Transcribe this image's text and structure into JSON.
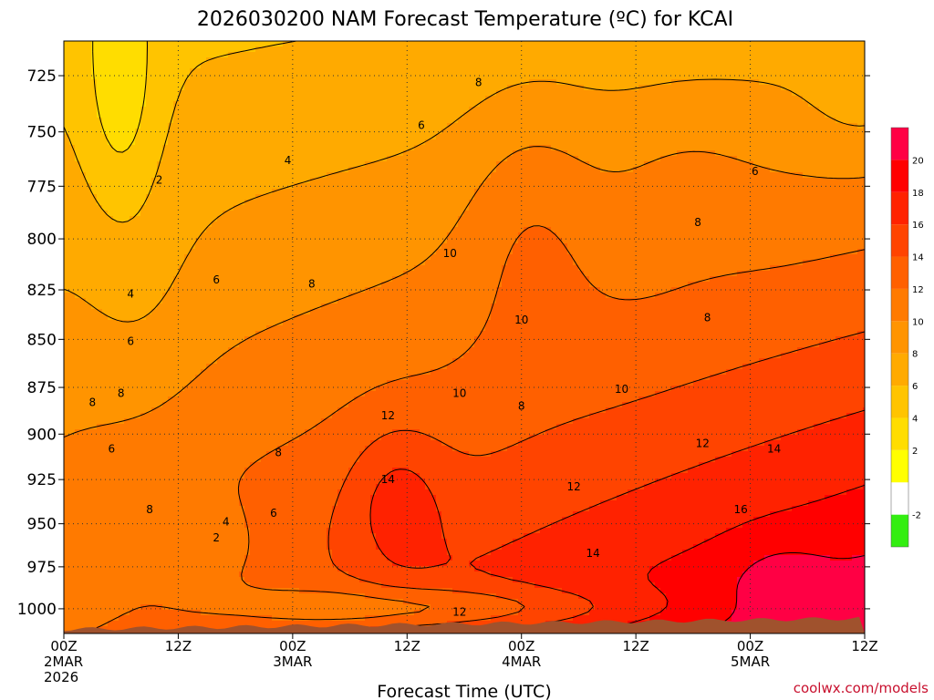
{
  "chart_data": {
    "type": "heatmap",
    "title": "2026030200 NAM Forecast Temperature (ºC) for KCAI",
    "xlabel": "Forecast Time (UTC)",
    "ylabel": "",
    "y_scale": "pressure",
    "y_ticks": [
      725,
      750,
      775,
      800,
      825,
      850,
      875,
      900,
      925,
      950,
      975,
      1000
    ],
    "ylim": [
      1015,
      710
    ],
    "x_ticks": [
      {
        "hour": 0,
        "lines": [
          "00Z",
          "2MAR",
          "2026"
        ]
      },
      {
        "hour": 12,
        "lines": [
          "12Z"
        ]
      },
      {
        "hour": 24,
        "lines": [
          "00Z",
          "3MAR"
        ]
      },
      {
        "hour": 36,
        "lines": [
          "12Z"
        ]
      },
      {
        "hour": 48,
        "lines": [
          "00Z",
          "4MAR"
        ]
      },
      {
        "hour": 60,
        "lines": [
          "12Z"
        ]
      },
      {
        "hour": 72,
        "lines": [
          "00Z",
          "5MAR"
        ]
      },
      {
        "hour": 84,
        "lines": [
          "12Z"
        ]
      }
    ],
    "xlim": [
      0,
      84
    ],
    "grid": true,
    "colorbar": {
      "placement": "right",
      "levels": [
        -4,
        -2,
        0,
        2,
        4,
        6,
        8,
        10,
        12,
        14,
        16,
        18,
        20,
        22
      ],
      "labels": [
        "-2",
        "2",
        "4",
        "6",
        "8",
        "10",
        "12",
        "14",
        "16",
        "18",
        "20"
      ],
      "colors": [
        "#33ee11",
        "#ffffff",
        "#ffff00",
        "#ffdd00",
        "#ffc400",
        "#ffaa00",
        "#ff9400",
        "#ff7a00",
        "#ff6000",
        "#ff4400",
        "#ff2200",
        "#ff0000",
        "#ff0044"
      ]
    },
    "contour_labels": [
      {
        "text": "8",
        "hour": 43.5,
        "p": 728
      },
      {
        "text": "6",
        "hour": 37.5,
        "p": 747
      },
      {
        "text": "4",
        "hour": 23.5,
        "p": 763
      },
      {
        "text": "2",
        "hour": 10,
        "p": 772
      },
      {
        "text": "6",
        "hour": 72.5,
        "p": 768
      },
      {
        "text": "8",
        "hour": 66.5,
        "p": 792
      },
      {
        "text": "10",
        "hour": 40.5,
        "p": 807
      },
      {
        "text": "6",
        "hour": 16,
        "p": 820
      },
      {
        "text": "8",
        "hour": 26,
        "p": 822
      },
      {
        "text": "4",
        "hour": 7,
        "p": 827
      },
      {
        "text": "10",
        "hour": 48,
        "p": 840
      },
      {
        "text": "8",
        "hour": 67.5,
        "p": 839
      },
      {
        "text": "6",
        "hour": 7,
        "p": 851
      },
      {
        "text": "10",
        "hour": 41.5,
        "p": 878
      },
      {
        "text": "10",
        "hour": 58.5,
        "p": 876
      },
      {
        "text": "8",
        "hour": 48,
        "p": 885
      },
      {
        "text": "8",
        "hour": 3,
        "p": 883
      },
      {
        "text": "8",
        "hour": 6,
        "p": 878
      },
      {
        "text": "12",
        "hour": 34,
        "p": 890
      },
      {
        "text": "6",
        "hour": 5,
        "p": 908
      },
      {
        "text": "8",
        "hour": 22.5,
        "p": 910
      },
      {
        "text": "12",
        "hour": 67,
        "p": 905
      },
      {
        "text": "14",
        "hour": 74.5,
        "p": 908
      },
      {
        "text": "14",
        "hour": 34,
        "p": 925
      },
      {
        "text": "12",
        "hour": 53.5,
        "p": 929
      },
      {
        "text": "16",
        "hour": 71,
        "p": 942
      },
      {
        "text": "8",
        "hour": 9,
        "p": 942
      },
      {
        "text": "6",
        "hour": 22,
        "p": 944
      },
      {
        "text": "4",
        "hour": 17,
        "p": 949
      },
      {
        "text": "2",
        "hour": 16,
        "p": 958
      },
      {
        "text": "14",
        "hour": 55.5,
        "p": 967
      },
      {
        "text": "12",
        "hour": 41.5,
        "p": 1002
      }
    ],
    "has_terrain_fill": true,
    "terrain_color": "#a0522d",
    "surface_pressure": 1008
  },
  "credit": "coolwx.com/models"
}
